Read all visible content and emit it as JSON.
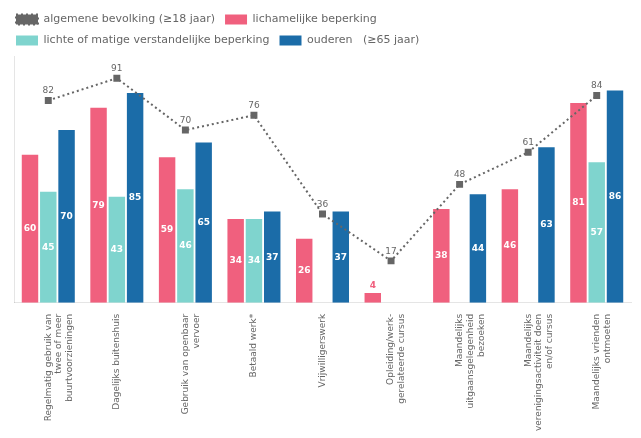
{
  "chart_data": {
    "type": "bar",
    "categories": [
      "Regelmatig gebruik van\ntwee of meer\nbuurtvoorzieningen",
      "Dagelijks buitenshuis",
      "Gebruik van openbaar\nvervoer",
      "Betaald werk*",
      "Vrijwilligerswerk",
      "Opleiding/werk-\ngerelateerde cursus",
      "Maandelijks\nuitgaansgelegenheid\nbezoeken",
      "Maandelijks\nverenigingsactiviteit doen\nen/of cursus",
      "Maandelijks vrienden\nontmoeten"
    ],
    "series": [
      {
        "name": "lichamelijke beperking",
        "color": "#F0607E",
        "values": [
          60,
          79,
          59,
          34,
          26,
          4,
          38,
          46,
          81
        ]
      },
      {
        "name": "lichte of matige verstandelijke beperking",
        "color": "#7FD4CE",
        "values": [
          45,
          43,
          46,
          34,
          0,
          0,
          0,
          0,
          57
        ],
        "value_labels": [
          "45",
          "43",
          "46",
          "34",
          null,
          null,
          null,
          null,
          "57"
        ]
      },
      {
        "name": "ouderen   (≥65 jaar)",
        "color": "#1B6CA8",
        "values": [
          70,
          85,
          65,
          37,
          37,
          0,
          44,
          63,
          86
        ],
        "value_labels": [
          "70",
          "85",
          "65",
          "37",
          "37",
          null,
          "44",
          "63",
          "86"
        ]
      },
      {
        "name": "algemene bevolking (≥18 jaar)",
        "type": "line",
        "line_style": "dotted",
        "marker": "square",
        "color": "#666666",
        "values": [
          82,
          91,
          70,
          76,
          36,
          17,
          48,
          61,
          84
        ]
      }
    ],
    "ylim": [
      0,
      100
    ],
    "grid": false,
    "legend": "upper left",
    "data_labels": true,
    "tick_labels": "x"
  }
}
